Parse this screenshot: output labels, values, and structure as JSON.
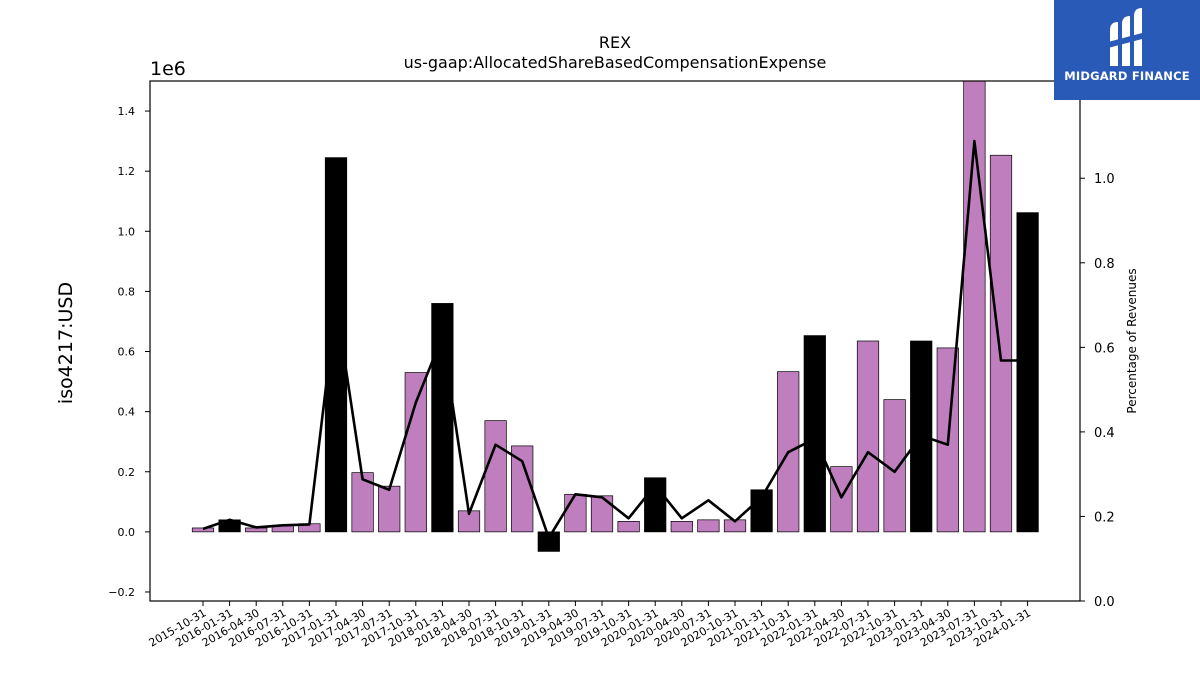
{
  "logo": {
    "text": "MIDGARD FINANCE",
    "background": "#2a5ab8"
  },
  "colors": {
    "bar_default": "#bf7fbf",
    "bar_highlight": "#000000",
    "line": "#000000"
  },
  "chart_data": {
    "type": "bar",
    "title": "REX",
    "subtitle": "us-gaap:AllocatedShareBasedCompensationExpense",
    "ylabel": "iso4217:USD",
    "y2label": "Percentage of Revenues",
    "y_offset_text": "1e6",
    "ylim": [
      -0.23,
      1.5
    ],
    "y2lim": [
      0,
      1.23
    ],
    "yticks": [
      "−0.2",
      "0.0",
      "0.2",
      "0.4",
      "0.6",
      "0.8",
      "1.0",
      "1.2",
      "1.4"
    ],
    "ytick_values": [
      -0.2,
      0,
      0.2,
      0.4,
      0.6,
      0.8,
      1.0,
      1.2,
      1.4
    ],
    "y2ticks": [
      "0.0",
      "0.2",
      "0.4",
      "0.6",
      "0.8",
      "1.0"
    ],
    "y2tick_values": [
      0,
      0.2,
      0.4,
      0.6,
      0.8,
      1.0
    ],
    "categories": [
      "2015-10-31",
      "2016-01-31",
      "2016-04-30",
      "2016-07-31",
      "2016-10-31",
      "2017-01-31",
      "2017-04-30",
      "2017-07-31",
      "2017-10-31",
      "2018-01-31",
      "2018-04-30",
      "2018-07-31",
      "2018-10-31",
      "2019-01-31",
      "2019-04-30",
      "2019-07-31",
      "2019-10-31",
      "2020-01-31",
      "2020-04-30",
      "2020-07-31",
      "2020-10-31",
      "2021-01-31",
      "2021-10-31",
      "2022-01-31",
      "2022-04-30",
      "2022-07-31",
      "2022-10-31",
      "2023-01-31",
      "2023-04-30",
      "2023-07-31",
      "2023-10-31",
      "2024-01-31"
    ],
    "highlight": [
      false,
      true,
      false,
      false,
      false,
      true,
      false,
      false,
      false,
      true,
      false,
      false,
      false,
      true,
      false,
      false,
      false,
      true,
      false,
      false,
      false,
      true,
      false,
      true,
      false,
      false,
      false,
      true,
      false,
      false,
      false,
      true
    ],
    "values": [
      0.013,
      0.04,
      0.013,
      0.022,
      0.027,
      1.245,
      0.197,
      0.152,
      0.53,
      0.76,
      0.07,
      0.37,
      0.286,
      -0.065,
      0.125,
      0.12,
      0.035,
      0.18,
      0.035,
      0.04,
      0.04,
      0.14,
      0.533,
      0.653,
      0.217,
      0.635,
      0.44,
      0.635,
      0.612,
      1.55,
      1.253,
      1.062
    ],
    "line_values": [
      0.01,
      0.04,
      0.015,
      0.022,
      0.025,
      0.76,
      0.175,
      0.14,
      0.43,
      0.65,
      0.06,
      0.29,
      0.235,
      -0.02,
      0.125,
      0.115,
      0.045,
      0.155,
      0.045,
      0.105,
      0.035,
      0.115,
      0.265,
      0.31,
      0.115,
      0.265,
      0.2,
      0.32,
      0.29,
      1.3,
      0.57,
      0.57
    ]
  }
}
